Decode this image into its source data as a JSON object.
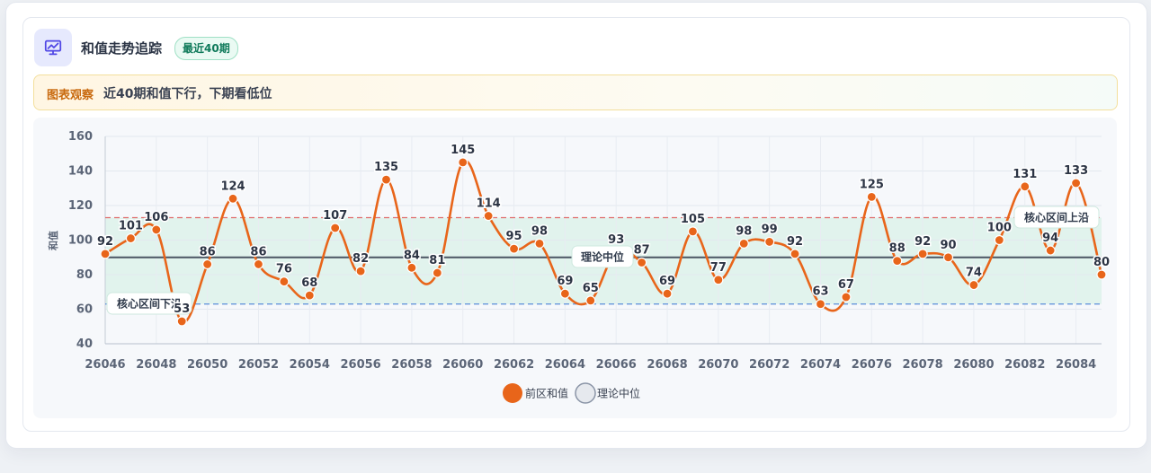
{
  "header": {
    "title": "和值走势追踪",
    "badge": "最近40期",
    "icon": "chart-presentation-icon"
  },
  "insight": {
    "tag": "图表观察",
    "text": "近40期和值下行，下期看低位"
  },
  "colors": {
    "line": "#e8651a",
    "median": "#4b5563",
    "band_fill": "#d9f1e8",
    "upper_line": "#e06b6b",
    "lower_line": "#5b8fd9",
    "accent_bg": "#e6e9fd",
    "accent_icon": "#4f46e5"
  },
  "chart_data": {
    "type": "line",
    "title": "",
    "xlabel": "",
    "ylabel": "和值",
    "ylim": [
      40,
      160
    ],
    "yticks": [
      40,
      60,
      80,
      100,
      120,
      140,
      160
    ],
    "x": [
      "26046",
      "26047",
      "26048",
      "26049",
      "26050",
      "26051",
      "26052",
      "26053",
      "26054",
      "26055",
      "26056",
      "26057",
      "26058",
      "26059",
      "26060",
      "26061",
      "26062",
      "26063",
      "26064",
      "26065",
      "26066",
      "26067",
      "26068",
      "26069",
      "26070",
      "26071",
      "26072",
      "26073",
      "26074",
      "26075",
      "26076",
      "26077",
      "26078",
      "26079",
      "26080",
      "26081",
      "26082",
      "26083",
      "26084",
      "26085"
    ],
    "xticks": [
      "26046",
      "26048",
      "26050",
      "26052",
      "26054",
      "26056",
      "26058",
      "26060",
      "26062",
      "26064",
      "26066",
      "26068",
      "26070",
      "26072",
      "26074",
      "26076",
      "26078",
      "26080",
      "26082",
      "26084"
    ],
    "series": [
      {
        "name": "前区和值",
        "values": [
          92,
          101,
          106,
          53,
          86,
          124,
          86,
          76,
          68,
          107,
          82,
          135,
          84,
          81,
          145,
          114,
          95,
          98,
          69,
          65,
          93,
          87,
          69,
          105,
          77,
          98,
          99,
          92,
          63,
          67,
          125,
          88,
          92,
          90,
          74,
          100,
          131,
          94,
          133,
          80
        ]
      }
    ],
    "reference_lines": [
      {
        "name": "理论中位",
        "value": 90,
        "label": "理论中位"
      },
      {
        "name": "upper",
        "value": 113,
        "label": "核心区间上沿"
      },
      {
        "name": "lower",
        "value": 63,
        "label": "核心区间下沿"
      }
    ],
    "legend": {
      "position": "bottom-center",
      "items": [
        "前区和值",
        "理论中位"
      ]
    },
    "grid": true
  }
}
